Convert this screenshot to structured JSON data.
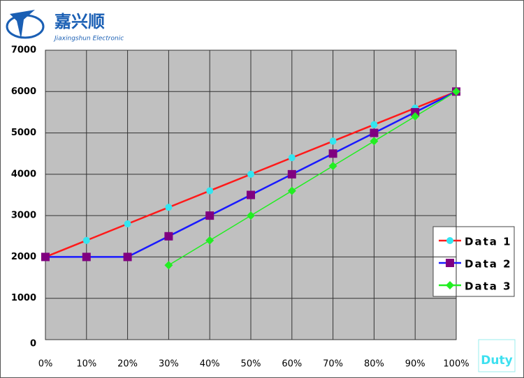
{
  "logo": {
    "name": "嘉兴顺",
    "subtitle": "Jiaxingshun Electronic"
  },
  "chart_data": {
    "type": "line",
    "x_label": "Duty",
    "categories": [
      "0%",
      "10%",
      "20%",
      "30%",
      "40%",
      "50%",
      "60%",
      "70%",
      "80%",
      "90%",
      "100%"
    ],
    "series": [
      {
        "name": "Data 1",
        "color": "#ff1a1a",
        "marker": "circle",
        "marker_color": "#33e5f0",
        "values": [
          2000,
          2400,
          2800,
          3200,
          3600,
          4000,
          4400,
          4800,
          5200,
          5600,
          6000
        ]
      },
      {
        "name": "Data 2",
        "color": "#1a1aff",
        "marker": "square",
        "marker_color": "#800080",
        "values": [
          2000,
          2000,
          2000,
          2500,
          3000,
          3500,
          4000,
          4500,
          5000,
          5500,
          6000
        ]
      },
      {
        "name": "Data 3",
        "color": "#22ee22",
        "marker": "diamond",
        "marker_color": "#22ee22",
        "values": [
          null,
          null,
          null,
          1800,
          2400,
          3000,
          3600,
          4200,
          4800,
          5400,
          6000
        ]
      }
    ],
    "ylim": [
      0,
      7000
    ],
    "yticks": [
      0,
      1000,
      2000,
      3000,
      4000,
      5000,
      6000,
      7000
    ],
    "grid": true,
    "plot_color": "#c0c0c0"
  }
}
